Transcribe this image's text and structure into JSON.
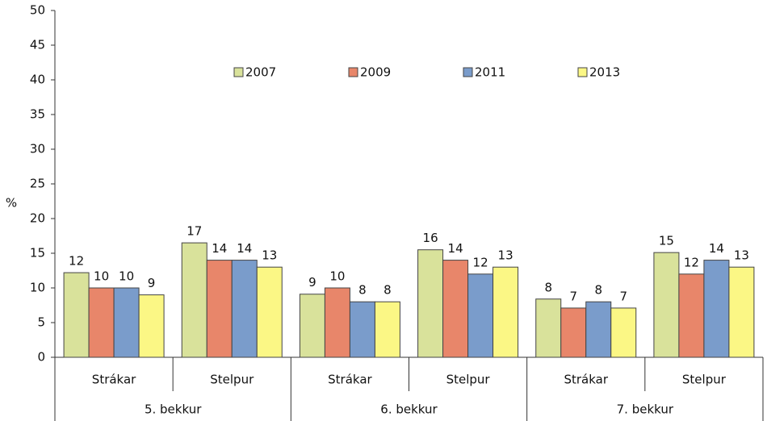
{
  "chart_data": {
    "type": "bar",
    "y_label": "%",
    "categories": [
      "Strákar",
      "Stelpur",
      "Strákar",
      "Stelpur",
      "Strákar",
      "Stelpur"
    ],
    "groups": [
      "5. bekkur",
      "6. bekkur",
      "7. bekkur"
    ],
    "series": [
      {
        "name": "2007",
        "color": "#d9e29b",
        "values": [
          12.2,
          16.5,
          9.1,
          15.5,
          8.4,
          15.1
        ],
        "value_labels": [
          "12",
          "17",
          "9",
          "16",
          "8",
          "15"
        ]
      },
      {
        "name": "2009",
        "color": "#e8866a",
        "values": [
          10,
          14,
          10,
          14,
          7.1,
          12
        ],
        "value_labels": [
          "10",
          "14",
          "10",
          "14",
          "7",
          "12"
        ]
      },
      {
        "name": "2011",
        "color": "#7a9ccb",
        "values": [
          10,
          14,
          8,
          12,
          8,
          14
        ],
        "value_labels": [
          "10",
          "14",
          "8",
          "12",
          "8",
          "14"
        ]
      },
      {
        "name": "2013",
        "color": "#fbf785",
        "values": [
          9,
          13,
          8,
          13,
          7.1,
          13
        ],
        "value_labels": [
          "9",
          "13",
          "8",
          "13",
          "7",
          "13"
        ]
      }
    ],
    "ylim": [
      0,
      50
    ],
    "yticks": [
      0,
      5,
      10,
      15,
      20,
      25,
      30,
      35,
      40,
      45,
      50
    ],
    "legend": "top"
  }
}
